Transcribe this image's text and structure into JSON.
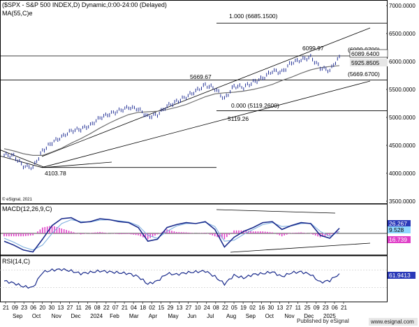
{
  "header": {
    "title": "($SPX - S&P 500 INDEX,D) Dynamic,0:00-24:00 (Delayed)",
    "ma_label": "MA(55,C)",
    "ma_suffix": "e"
  },
  "colors": {
    "price": "#0a1a8a",
    "ma": "#707070",
    "macd_line": "#1a2b8c",
    "signal_line": "#7fb0e0",
    "histogram": "#e040c8",
    "rsi": "#1a2b8c",
    "trendline": "#000000",
    "macd_tag": "#2a39b8",
    "signal_tag": "#8fd8ff",
    "hist_tag": "#e040c8",
    "rsi_tag": "#2a39b8"
  },
  "main_panel": {
    "price_tag_last": "6089.6400",
    "price_tag_ma": "5925.8505",
    "fib_upper": "1.000 (6685.1500)",
    "fib_lower": "0.000 (5119.2600)",
    "level_high": "(6099.9700)",
    "level_mid": "(5669.6700)",
    "ann_high": "6099.97",
    "ann_mid": "5669.67",
    "ann_low": "5119.26",
    "ann_bottom": "4103.78",
    "copyright": "© eSignal, 2021",
    "y_ticks": [
      "7000.0000",
      "6500.0000",
      "6000.0000",
      "5500.0000",
      "5000.0000",
      "4500.0000",
      "4000.0000",
      "3500.0000"
    ]
  },
  "macd_panel": {
    "label": "MACD(12,26,9,C)",
    "tag_macd": "26.267",
    "tag_signal": "9.528",
    "tag_hist": "16.739"
  },
  "rsi_panel": {
    "label": "RSI(14,C)",
    "tag_rsi": "61.9413"
  },
  "x_axis": {
    "days": [
      "21",
      "09",
      "23",
      "06",
      "20",
      "30",
      "13",
      "27",
      "11",
      "26",
      "08",
      "22",
      "07",
      "21",
      "04",
      "18",
      "02",
      "15",
      "29",
      "13",
      "27",
      "10",
      "24",
      "08",
      "22",
      "05",
      "19",
      "02",
      "16",
      "30",
      "13",
      "27",
      "11",
      "25",
      "09",
      "23",
      "06",
      "21"
    ],
    "months": [
      "Sep",
      "Oct",
      "Nov",
      "Dec",
      "2024",
      "Feb",
      "Mar",
      "Apr",
      "May",
      "Jun",
      "Jul",
      "Aug",
      "Sep",
      "Oct",
      "Nov",
      "Dec",
      "2025"
    ]
  },
  "footer": {
    "published": "Published by eSignal",
    "website": "www.esignal.com"
  },
  "chart_data": [
    {
      "type": "line",
      "title": "($SPX - S&P 500 INDEX,D) Dynamic,0:00-24:00 (Delayed)",
      "xlabel": "",
      "ylabel": "",
      "x": [
        "2023-09-21",
        "2023-10-09",
        "2023-10-23",
        "2023-10-30",
        "2023-11-13",
        "2023-11-27",
        "2023-12-11",
        "2023-12-26",
        "2024-01-08",
        "2024-01-22",
        "2024-02-07",
        "2024-02-21",
        "2024-03-04",
        "2024-03-18",
        "2024-04-02",
        "2024-04-15",
        "2024-04-29",
        "2024-05-13",
        "2024-05-27",
        "2024-06-10",
        "2024-06-24",
        "2024-07-08",
        "2024-07-22",
        "2024-08-05",
        "2024-08-19",
        "2024-09-02",
        "2024-09-16",
        "2024-09-30",
        "2024-10-13",
        "2024-10-27",
        "2024-11-11",
        "2024-11-25",
        "2024-12-09",
        "2024-12-23",
        "2025-01-06",
        "2025-01-21"
      ],
      "series": [
        {
          "name": "$SPX",
          "values": [
            4330,
            4310,
            4130,
            4104,
            4400,
            4550,
            4650,
            4760,
            4790,
            4860,
            4995,
            5060,
            5120,
            5180,
            5150,
            5010,
            5050,
            5200,
            5280,
            5370,
            5470,
            5580,
            5520,
            5330,
            5560,
            5540,
            5630,
            5700,
            5830,
            5810,
            5980,
            6030,
            6080,
            5890,
            5840,
            6090
          ]
        },
        {
          "name": "MA(55,C)",
          "values": [
            4440,
            4400,
            4350,
            4320,
            4320,
            4380,
            4450,
            4540,
            4620,
            4710,
            4810,
            4900,
            4980,
            5050,
            5090,
            5100,
            5110,
            5140,
            5180,
            5230,
            5300,
            5370,
            5420,
            5440,
            5450,
            5470,
            5500,
            5540,
            5590,
            5660,
            5720,
            5790,
            5850,
            5890,
            5910,
            5926
          ]
        }
      ],
      "ylim": [
        3500,
        7000
      ],
      "annotations": [
        "6099.97",
        "5669.67",
        "5119.26",
        "4103.78",
        "1.000 (6685.1500)",
        "0.000 (5119.2600)",
        "(6099.9700)",
        "(5669.6700)"
      ],
      "grid": false
    },
    {
      "type": "line",
      "title": "MACD(12,26,9,C)",
      "series": [
        {
          "name": "MACD",
          "values": [
            -40,
            -60,
            -85,
            -95,
            -30,
            40,
            75,
            80,
            55,
            60,
            75,
            70,
            60,
            55,
            30,
            -40,
            -30,
            30,
            45,
            55,
            50,
            60,
            20,
            -70,
            -20,
            10,
            30,
            55,
            60,
            20,
            40,
            55,
            50,
            -10,
            -25,
            26.267
          ]
        },
        {
          "name": "Signal",
          "values": [
            -25,
            -45,
            -70,
            -85,
            -60,
            0,
            50,
            70,
            60,
            58,
            68,
            70,
            64,
            58,
            40,
            -10,
            -25,
            10,
            38,
            50,
            50,
            57,
            35,
            -40,
            -35,
            -5,
            20,
            45,
            55,
            35,
            38,
            50,
            52,
            10,
            -15,
            9.528
          ]
        },
        {
          "name": "Histogram",
          "values": [
            -15,
            -15,
            -15,
            -10,
            30,
            40,
            25,
            10,
            -5,
            2,
            7,
            0,
            -4,
            -3,
            -10,
            -30,
            -5,
            20,
            7,
            5,
            0,
            3,
            -15,
            -30,
            15,
            15,
            10,
            10,
            5,
            -15,
            2,
            5,
            -2,
            -20,
            -10,
            16.739
          ]
        }
      ]
    },
    {
      "type": "line",
      "title": "RSI(14,C)",
      "series": [
        {
          "name": "RSI(14,C)",
          "values": [
            45,
            40,
            32,
            30,
            65,
            70,
            72,
            68,
            62,
            65,
            68,
            66,
            64,
            62,
            55,
            38,
            45,
            62,
            60,
            64,
            66,
            68,
            55,
            38,
            58,
            52,
            60,
            62,
            66,
            55,
            64,
            66,
            60,
            42,
            46,
            61.9413
          ]
        }
      ],
      "ylim": [
        0,
        100
      ]
    }
  ]
}
